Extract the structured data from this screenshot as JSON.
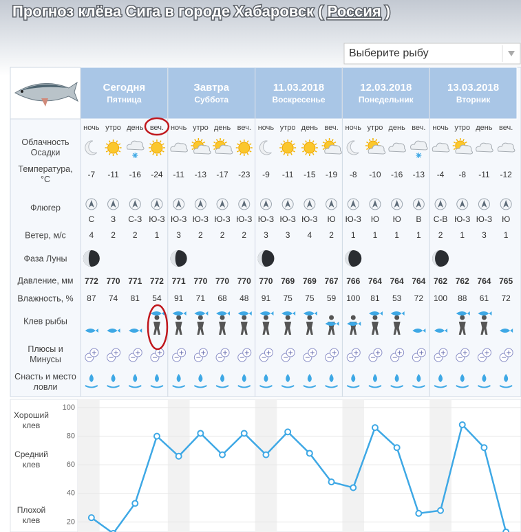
{
  "header": {
    "title_prefix": "Прогноз клёва Сига в городе Хабаровск ( ",
    "title_link": "Россия",
    "title_suffix": " )"
  },
  "fish_select": {
    "placeholder": "Выберите рыбу"
  },
  "periods": [
    "ночь",
    "утро",
    "день",
    "веч."
  ],
  "days": [
    {
      "name": "Сегодня",
      "weekday": "Пятница"
    },
    {
      "name": "Завтра",
      "weekday": "Суббота"
    },
    {
      "name": "11.03.2018",
      "weekday": "Воскресенье"
    },
    {
      "name": "12.03.2018",
      "weekday": "Понедельник"
    },
    {
      "name": "13.03.2018",
      "weekday": "Вторник"
    }
  ],
  "row_labels": {
    "weather": "Облачность Осадки",
    "temperature": "Температура, °C",
    "wind_vane": "Флюгер",
    "wind": "Ветер, м/с",
    "moon": "Фаза Луны",
    "pressure": "Давление, мм",
    "humidity": "Влажность, %",
    "bite": "Клев рыбы",
    "pros_cons": "Плюсы и Минусы",
    "tackle": "Снасть и место ловли"
  },
  "weather": [
    "moon",
    "sun",
    "cloud-snow",
    "sun",
    "cloud",
    "sun-cloud",
    "sun-cloud",
    "sun",
    "moon",
    "sun",
    "sun",
    "sun-cloud",
    "moon",
    "sun-cloud",
    "cloud",
    "cloud-snow",
    "cloud",
    "sun-cloud",
    "cloud",
    "cloud"
  ],
  "temperature": [
    -7,
    -11,
    -16,
    -24,
    -11,
    -13,
    -17,
    -23,
    -9,
    -11,
    -15,
    -19,
    -8,
    -10,
    -16,
    -13,
    -4,
    -8,
    -11,
    -12
  ],
  "wind_direction": [
    "С",
    "З",
    "С-З",
    "Ю-З",
    "Ю-З",
    "Ю-З",
    "Ю-З",
    "Ю-З",
    "Ю-З",
    "Ю-З",
    "Ю-З",
    "Ю",
    "Ю-З",
    "Ю",
    "Ю",
    "В",
    "С-В",
    "Ю-З",
    "Ю-З",
    "Ю"
  ],
  "wind": [
    4,
    2,
    2,
    1,
    3,
    2,
    2,
    2,
    3,
    3,
    4,
    2,
    1,
    1,
    1,
    1,
    2,
    1,
    3,
    1
  ],
  "pressure": [
    772,
    770,
    771,
    772,
    771,
    770,
    770,
    770,
    770,
    769,
    769,
    767,
    766,
    764,
    764,
    764,
    762,
    762,
    764,
    765
  ],
  "humidity": [
    87,
    74,
    81,
    54,
    91,
    71,
    68,
    48,
    91,
    75,
    75,
    59,
    100,
    81,
    53,
    72,
    100,
    88,
    61,
    72
  ],
  "chart_data": {
    "type": "line",
    "color": "#3ea8e5",
    "values": [
      23,
      12,
      33,
      80,
      66,
      82,
      67,
      82,
      67,
      83,
      68,
      48,
      44,
      86,
      72,
      26,
      28,
      88,
      72,
      13
    ],
    "ylim": [
      0,
      100
    ],
    "yticks": [
      20,
      40,
      60,
      80,
      100
    ],
    "grid": true,
    "zone_labels": [
      "Хороший клев",
      "Средний клев",
      "Плохой клев"
    ]
  }
}
